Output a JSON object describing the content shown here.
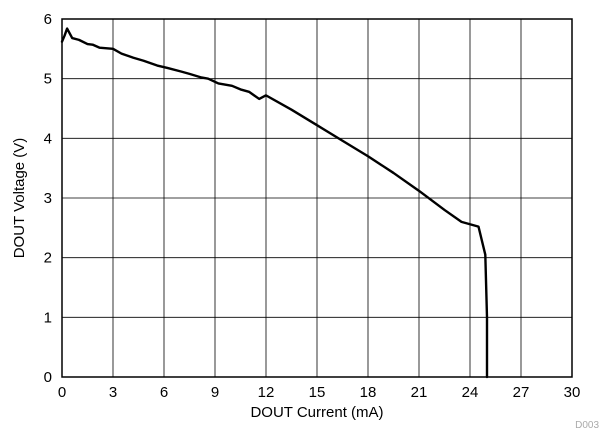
{
  "chart_data": {
    "type": "line",
    "title": "",
    "xlabel": "DOUT Current (mA)",
    "ylabel": "DOUT Voltage (V)",
    "xlim": [
      0,
      30
    ],
    "ylim": [
      0,
      6
    ],
    "x_ticks": [
      0,
      3,
      6,
      9,
      12,
      15,
      18,
      21,
      24,
      27,
      30
    ],
    "y_ticks": [
      0,
      1,
      2,
      3,
      4,
      5,
      6
    ],
    "grid": true,
    "legend": "none",
    "line_color": "#000000",
    "series": [
      {
        "x": [
          0,
          0.15,
          0.3,
          0.6,
          1.0,
          1.5,
          1.8,
          2.2,
          3.0,
          3.5,
          4.2,
          4.8,
          5.6,
          6.2,
          7.0,
          7.5,
          8.2,
          8.6,
          9.2,
          10.0,
          10.5,
          11.0,
          11.3,
          11.6,
          12.0,
          13.5,
          15.0,
          16.5,
          18.0,
          19.5,
          21.0,
          22.5,
          23.5,
          24.5,
          24.9,
          25.0,
          25.0
        ],
        "y": [
          5.62,
          5.72,
          5.84,
          5.68,
          5.65,
          5.58,
          5.57,
          5.52,
          5.5,
          5.42,
          5.35,
          5.3,
          5.22,
          5.18,
          5.12,
          5.08,
          5.02,
          5.0,
          4.92,
          4.88,
          4.82,
          4.78,
          4.72,
          4.66,
          4.72,
          4.48,
          4.22,
          3.96,
          3.7,
          3.42,
          3.12,
          2.8,
          2.6,
          2.52,
          2.05,
          1.0,
          0.0
        ]
      }
    ],
    "footnote": "D003"
  }
}
